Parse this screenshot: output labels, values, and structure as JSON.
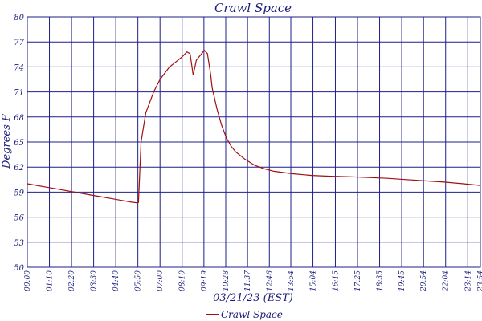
{
  "chart_data": {
    "type": "line",
    "title": "Crawl Space",
    "xlabel": "03/21/23 (EST)",
    "ylabel": "Degrees F",
    "ylim": [
      50,
      80
    ],
    "yticks": [
      "50",
      "53",
      "56",
      "59",
      "62",
      "65",
      "68",
      "71",
      "74",
      "77",
      "80"
    ],
    "xticks": [
      "00:00",
      "01:10",
      "02:20",
      "03:30",
      "04:40",
      "05:50",
      "07:00",
      "08:10",
      "09:19",
      "10:28",
      "11:37",
      "12:46",
      "13:54",
      "15:04",
      "16:15",
      "17:25",
      "18:35",
      "19:45",
      "20:54",
      "22:04",
      "23:14",
      "23:54"
    ],
    "grid": true,
    "legend_position": "bottom-center",
    "series": [
      {
        "name": "Crawl Space",
        "color": "#a01010",
        "points": [
          [
            "00:00",
            60.0
          ],
          [
            "00:30",
            59.8
          ],
          [
            "01:00",
            59.6
          ],
          [
            "01:30",
            59.4
          ],
          [
            "02:00",
            59.2
          ],
          [
            "02:30",
            59.0
          ],
          [
            "03:00",
            58.8
          ],
          [
            "03:30",
            58.6
          ],
          [
            "04:00",
            58.4
          ],
          [
            "04:30",
            58.2
          ],
          [
            "05:00",
            58.0
          ],
          [
            "05:30",
            57.8
          ],
          [
            "05:50",
            57.7
          ],
          [
            "05:52",
            57.8
          ],
          [
            "06:00",
            65.0
          ],
          [
            "06:15",
            68.5
          ],
          [
            "06:40",
            71.0
          ],
          [
            "07:00",
            72.5
          ],
          [
            "07:30",
            74.0
          ],
          [
            "07:50",
            74.6
          ],
          [
            "08:10",
            75.2
          ],
          [
            "08:25",
            75.8
          ],
          [
            "08:35",
            75.6
          ],
          [
            "08:45",
            73.0
          ],
          [
            "08:55",
            74.8
          ],
          [
            "09:10",
            75.5
          ],
          [
            "09:20",
            76.0
          ],
          [
            "09:30",
            75.6
          ],
          [
            "09:40",
            73.2
          ],
          [
            "09:45",
            71.5
          ],
          [
            "10:00",
            69.0
          ],
          [
            "10:15",
            67.0
          ],
          [
            "10:30",
            65.5
          ],
          [
            "10:45",
            64.5
          ],
          [
            "11:00",
            63.8
          ],
          [
            "11:30",
            62.9
          ],
          [
            "12:00",
            62.2
          ],
          [
            "12:30",
            61.8
          ],
          [
            "13:00",
            61.5
          ],
          [
            "14:00",
            61.2
          ],
          [
            "15:00",
            61.0
          ],
          [
            "16:00",
            60.9
          ],
          [
            "17:00",
            60.85
          ],
          [
            "18:00",
            60.75
          ],
          [
            "19:00",
            60.65
          ],
          [
            "20:00",
            60.5
          ],
          [
            "21:00",
            60.35
          ],
          [
            "22:00",
            60.2
          ],
          [
            "23:00",
            60.0
          ],
          [
            "23:54",
            59.8
          ]
        ]
      }
    ]
  }
}
